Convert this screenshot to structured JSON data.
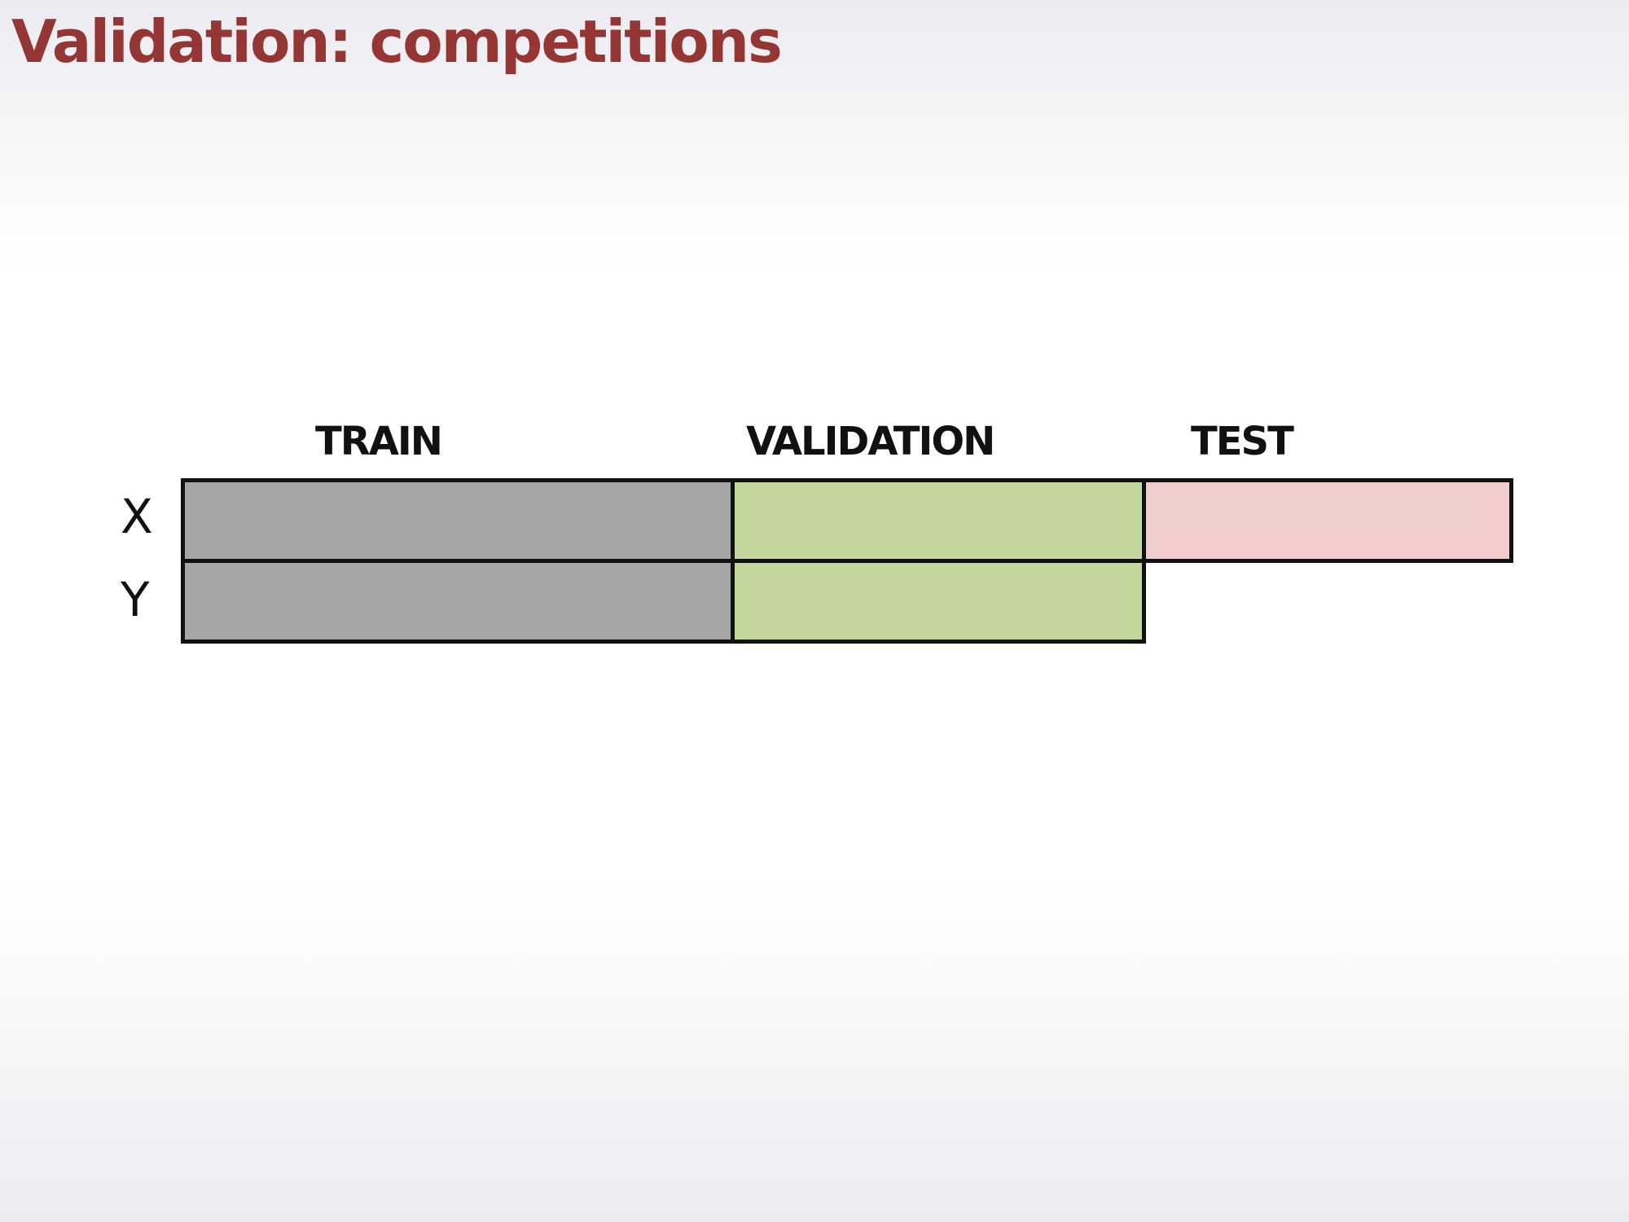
{
  "slide": {
    "title": "Validation: competitions"
  },
  "columns": {
    "train": "TRAIN",
    "validation": "VALIDATION",
    "test": "TEST"
  },
  "rows": {
    "x": "X",
    "y": "Y"
  },
  "colors": {
    "title": "#943634",
    "train_fill": "#a6a6a6",
    "validation_fill": "#c3d69b",
    "test_fill": "#f2cdcd",
    "border": "#111111"
  }
}
